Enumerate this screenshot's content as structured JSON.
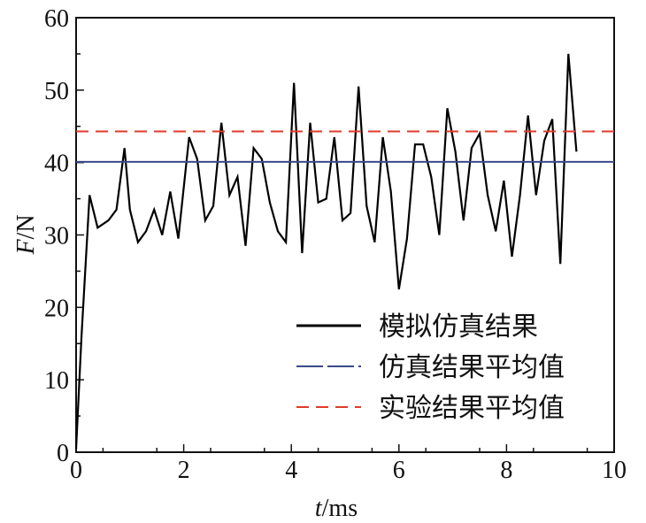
{
  "chart_data": {
    "type": "line",
    "xlabel_italic": "t",
    "xlabel_rest": "/ms",
    "ylabel_italic": "F",
    "ylabel_rest": "/N",
    "xlim": [
      0,
      10
    ],
    "ylim": [
      0,
      60
    ],
    "xticks": [
      "0",
      "2",
      "4",
      "6",
      "8",
      "10"
    ],
    "yticks": [
      "0",
      "10",
      "20",
      "30",
      "40",
      "50",
      "60"
    ],
    "grid": false,
    "legend_position": "bottom-right",
    "series": [
      {
        "name": "模拟仿真结果",
        "kind": "line",
        "color": "#000000",
        "x": [
          0.0,
          0.1,
          0.25,
          0.4,
          0.6,
          0.75,
          0.9,
          1.0,
          1.15,
          1.3,
          1.45,
          1.6,
          1.75,
          1.9,
          2.1,
          2.25,
          2.4,
          2.55,
          2.7,
          2.85,
          3.0,
          3.15,
          3.3,
          3.45,
          3.6,
          3.75,
          3.9,
          4.05,
          4.2,
          4.35,
          4.5,
          4.65,
          4.8,
          4.95,
          5.1,
          5.25,
          5.4,
          5.55,
          5.7,
          5.85,
          6.0,
          6.15,
          6.3,
          6.45,
          6.6,
          6.75,
          6.9,
          7.05,
          7.2,
          7.35,
          7.5,
          7.65,
          7.8,
          7.95,
          8.1,
          8.25,
          8.4,
          8.55,
          8.7,
          8.85,
          9.0,
          9.15,
          9.3
        ],
        "y": [
          0.5,
          16.0,
          35.5,
          31.0,
          32.0,
          33.5,
          42.0,
          33.5,
          29.0,
          30.5,
          33.5,
          30.0,
          36.0,
          29.5,
          43.5,
          40.5,
          32.0,
          34.0,
          45.5,
          35.5,
          38.0,
          28.5,
          42.0,
          40.5,
          34.5,
          30.5,
          29.0,
          51.0,
          27.5,
          45.5,
          34.5,
          35.0,
          43.5,
          32.0,
          33.0,
          50.5,
          34.0,
          29.0,
          43.5,
          36.0,
          22.5,
          29.5,
          42.5,
          42.5,
          38.0,
          30.0,
          47.5,
          41.5,
          32.0,
          42.0,
          44.0,
          35.5,
          30.5,
          37.5,
          27.0,
          35.5,
          46.5,
          35.5,
          43.0,
          46.0,
          26.0,
          55.0,
          41.5
        ]
      },
      {
        "name": "仿真结果平均值",
        "kind": "hline",
        "color": "#3a4a8a",
        "value": 40.1
      },
      {
        "name": "实验结果平均值",
        "kind": "hline",
        "color": "#e03a2a",
        "dashed": true,
        "value": 44.3
      }
    ]
  }
}
